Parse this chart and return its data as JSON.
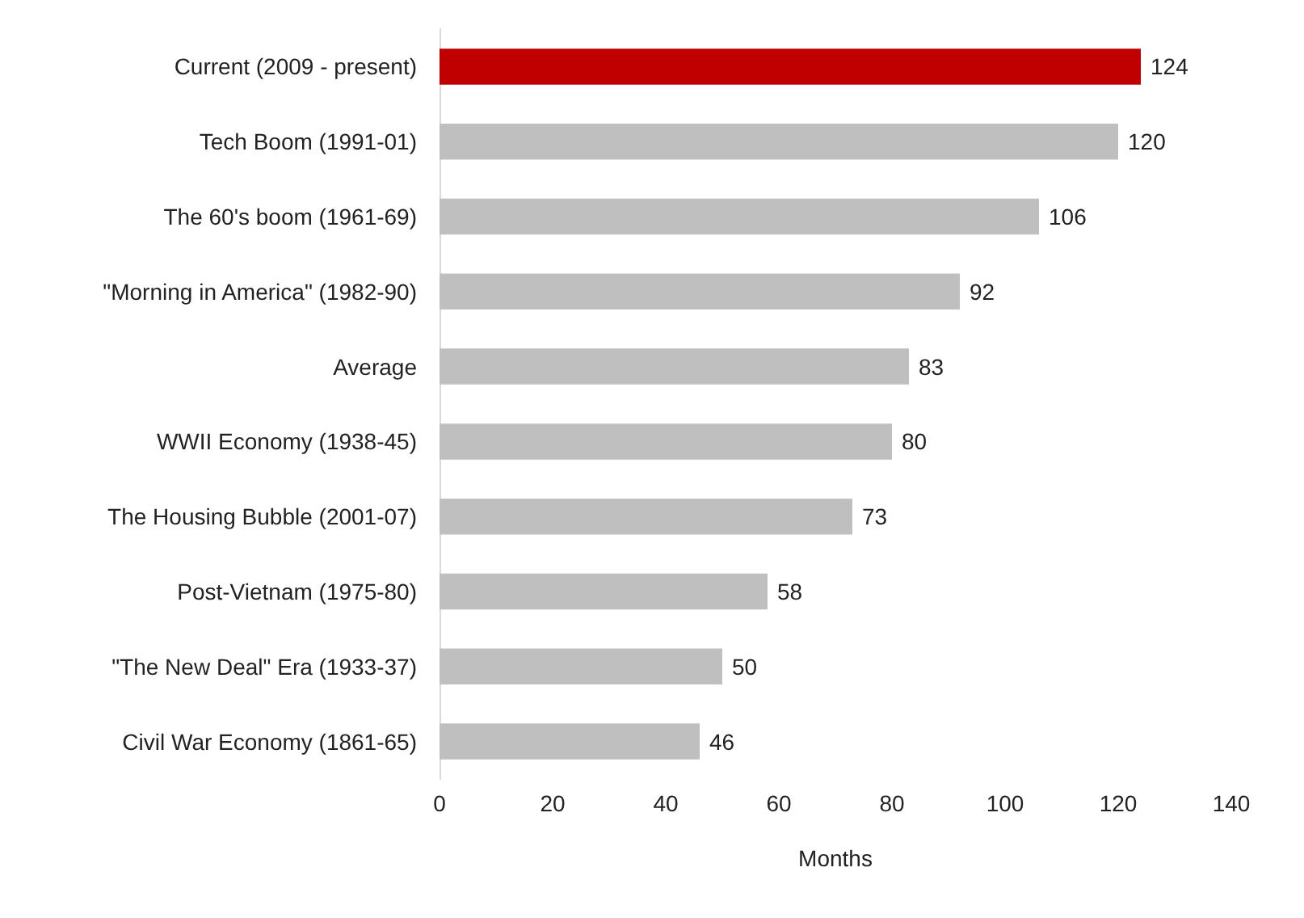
{
  "chart_data": {
    "type": "bar",
    "orientation": "horizontal",
    "xlabel": "Months",
    "categories": [
      "Current (2009 - present)",
      "Tech Boom (1991-01)",
      "The 60's boom (1961-69)",
      "\"Morning in America\" (1982-90)",
      "Average",
      "WWII Economy (1938-45)",
      "The Housing Bubble (2001-07)",
      "Post-Vietnam (1975-80)",
      "\"The New Deal\" Era (1933-37)",
      "Civil War Economy (1861-65)"
    ],
    "values": [
      124,
      120,
      106,
      92,
      83,
      80,
      73,
      58,
      50,
      46
    ],
    "colors": [
      "#c00000",
      "#bfbfbf",
      "#bfbfbf",
      "#bfbfbf",
      "#bfbfbf",
      "#bfbfbf",
      "#bfbfbf",
      "#bfbfbf",
      "#bfbfbf",
      "#bfbfbf"
    ],
    "xlim": [
      0,
      140
    ],
    "xticks": [
      0,
      20,
      40,
      60,
      80,
      100,
      120,
      140
    ],
    "data_labels": true,
    "grid": false
  }
}
